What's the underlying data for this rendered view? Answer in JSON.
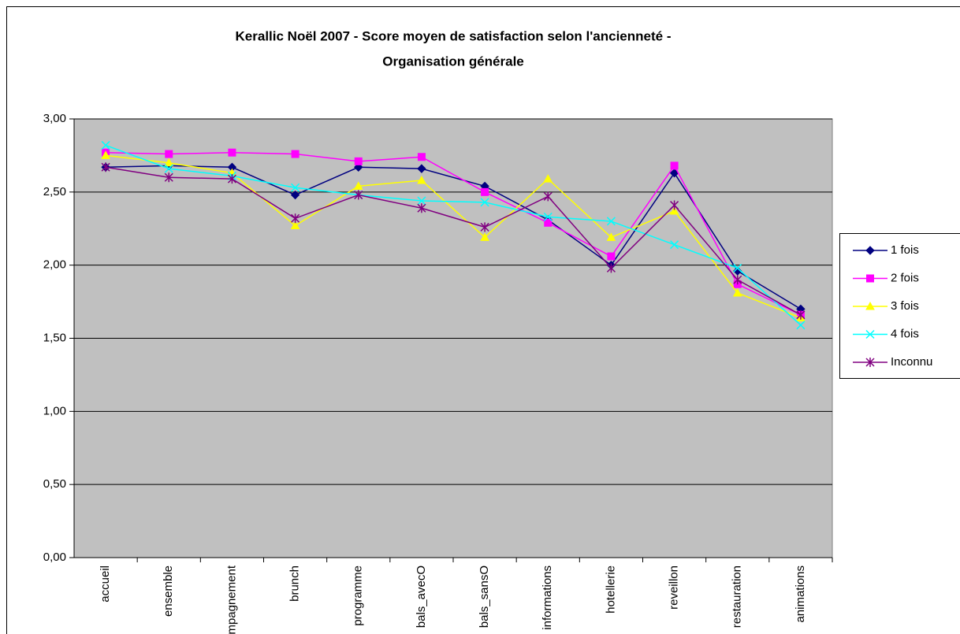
{
  "chart_data": {
    "type": "line",
    "title": [
      "Kerallic Noël 2007 - Score moyen de satisfaction selon l'ancienneté -",
      "Organisation générale"
    ],
    "categories": [
      "accueil",
      "ensemble",
      "accompagnement",
      "brunch",
      "programme",
      "bals_avecO",
      "bals_sansO",
      "informations",
      "hotellerie",
      "reveillon",
      "restauration",
      "animations"
    ],
    "series": [
      {
        "name": "1 fois",
        "color": "#000080",
        "marker": "diamond",
        "values": [
          2.67,
          2.68,
          2.67,
          2.48,
          2.67,
          2.66,
          2.54,
          2.31,
          2.0,
          2.63,
          1.96,
          1.7
        ]
      },
      {
        "name": "2 fois",
        "color": "#ff00ff",
        "marker": "square",
        "values": [
          2.77,
          2.76,
          2.77,
          2.76,
          2.71,
          2.74,
          2.5,
          2.29,
          2.06,
          2.68,
          1.87,
          1.66
        ]
      },
      {
        "name": "3 fois",
        "color": "#ffff00",
        "marker": "triangle",
        "values": [
          2.75,
          2.7,
          2.63,
          2.27,
          2.54,
          2.58,
          2.19,
          2.59,
          2.19,
          2.37,
          1.81,
          1.64
        ]
      },
      {
        "name": "4 fois",
        "color": "#00ffff",
        "marker": "x",
        "values": [
          2.82,
          2.66,
          2.61,
          2.53,
          2.48,
          2.44,
          2.43,
          2.33,
          2.3,
          2.14,
          1.98,
          1.59
        ]
      },
      {
        "name": "Inconnu",
        "color": "#800080",
        "marker": "star",
        "values": [
          2.67,
          2.6,
          2.59,
          2.32,
          2.48,
          2.39,
          2.26,
          2.47,
          1.98,
          2.41,
          1.9,
          1.66
        ]
      }
    ],
    "ylim": [
      0,
      3
    ],
    "yticks": [
      {
        "value": 0,
        "label": "0,00"
      },
      {
        "value": 0.5,
        "label": "0,50"
      },
      {
        "value": 1,
        "label": "1,00"
      },
      {
        "value": 1.5,
        "label": "1,50"
      },
      {
        "value": 2,
        "label": "2,00"
      },
      {
        "value": 2.5,
        "label": "2,50"
      },
      {
        "value": 3,
        "label": "3,00"
      }
    ],
    "grid": true,
    "plot_background": "#c0c0c0",
    "legend": "right"
  }
}
